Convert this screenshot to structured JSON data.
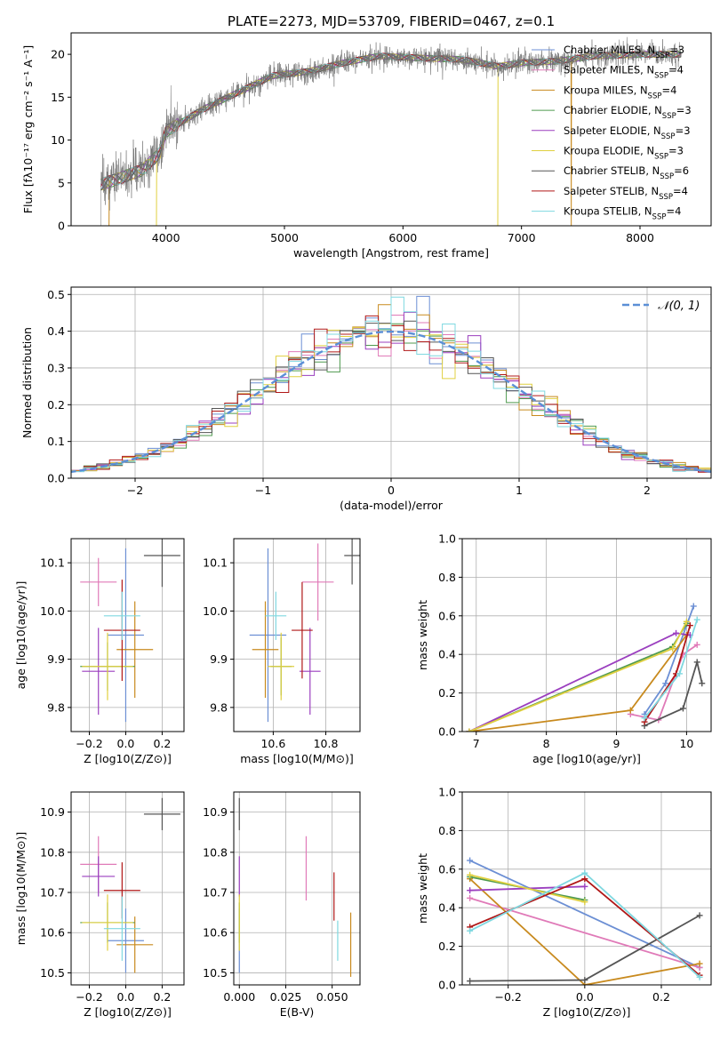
{
  "figure_title": "PLATE=2273, MJD=53709, FIBERID=0467, z=0.1",
  "series_colors": {
    "Chabrier MILES": "#6c8fd4",
    "Salpeter MILES": "#e07ab8",
    "Kroupa MILES": "#c88a1e",
    "Chabrier ELODIE": "#4f9a4f",
    "Salpeter ELODIE": "#9b3fbf",
    "Kroupa ELODIE": "#e0d040",
    "Chabrier STELIB": "#555555",
    "Salpeter STELIB": "#b01818",
    "Kroupa STELIB": "#7fd8e0"
  },
  "chart_data": [
    {
      "id": "spectrum",
      "type": "line",
      "xlabel": "wavelength [Angstrom, rest frame]",
      "ylabel": "Flux [fλ10⁻¹⁷ erg cm⁻² s⁻¹ A⁻¹]",
      "xlim": [
        3200,
        8600
      ],
      "ylim": [
        0,
        22.5
      ],
      "xticks": [
        4000,
        5000,
        6000,
        7000,
        8000
      ],
      "yticks": [
        0,
        5,
        10,
        15,
        20
      ],
      "legend_placement": "upper-right",
      "legend": [
        "Chabrier MILES, N_SSP=3",
        "Salpeter MILES, N_SSP=4",
        "Kroupa MILES, N_SSP=4",
        "Chabrier ELODIE, N_SSP=3",
        "Salpeter ELODIE, N_SSP=3",
        "Kroupa ELODIE, N_SSP=3",
        "Chabrier STELIB, N_SSP=6",
        "Salpeter STELIB, N_SSP=4",
        "Kroupa STELIB, N_SSP=4"
      ],
      "continuum_knots": [
        [
          3450,
          4.8
        ],
        [
          3600,
          5.5
        ],
        [
          3800,
          6.5
        ],
        [
          3950,
          8.5
        ],
        [
          4000,
          11.0
        ],
        [
          4300,
          13.5
        ],
        [
          4600,
          15.5
        ],
        [
          4900,
          17.5
        ],
        [
          5200,
          18.0
        ],
        [
          5500,
          19.0
        ],
        [
          5800,
          19.8
        ],
        [
          6100,
          19.6
        ],
        [
          6500,
          19.4
        ],
        [
          6800,
          18.6
        ],
        [
          7000,
          19.0
        ],
        [
          7300,
          19.2
        ],
        [
          7600,
          19.8
        ],
        [
          8000,
          20.0
        ],
        [
          8350,
          20.0
        ]
      ],
      "model_dropouts": [
        [
          3520,
          "Kroupa MILES"
        ],
        [
          3920,
          "Kroupa ELODIE"
        ],
        [
          6800,
          "Kroupa ELODIE"
        ],
        [
          7420,
          "Kroupa MILES"
        ]
      ]
    },
    {
      "id": "residuals",
      "type": "histogram",
      "xlabel": "(data-model)/error",
      "ylabel": "Normed distribution",
      "xlim": [
        -2.5,
        2.5
      ],
      "ylim": [
        0,
        0.52
      ],
      "xticks": [
        -2,
        -1,
        0,
        1,
        2
      ],
      "yticks": [
        0.0,
        0.1,
        0.2,
        0.3,
        0.4,
        0.5
      ],
      "grid": true,
      "legend": [
        "𝒩(0, 1)"
      ],
      "legend_placement": "upper-right",
      "bin_width": 0.1,
      "bin_edges_range": [
        -2.5,
        2.5
      ],
      "reference_curve": "normal(0,1)"
    },
    {
      "id": "age_vs_Z",
      "type": "errorbar",
      "xlabel": "Z [log10(Z/Z⊙)]",
      "ylabel": "age  [log10(age/yr)]",
      "xlim": [
        -0.3,
        0.32
      ],
      "ylim": [
        9.75,
        10.15
      ],
      "xticks": [
        -0.2,
        0.0,
        0.2
      ],
      "yticks": [
        9.8,
        9.9,
        10.0,
        10.1
      ],
      "points": [
        {
          "series": "Chabrier MILES",
          "x": 0.0,
          "y": 9.95,
          "xerr": 0.1,
          "yerr": 0.18
        },
        {
          "series": "Salpeter MILES",
          "x": -0.15,
          "y": 10.06,
          "xerr": 0.1,
          "yerr": 0.05
        },
        {
          "series": "Kroupa MILES",
          "x": 0.05,
          "y": 9.92,
          "xerr": 0.1,
          "yerr": 0.1
        },
        {
          "series": "Chabrier ELODIE",
          "x": -0.1,
          "y": 9.885,
          "xerr": 0.15,
          "yerr": 0.05
        },
        {
          "series": "Salpeter ELODIE",
          "x": -0.15,
          "y": 9.875,
          "xerr": 0.09,
          "yerr": 0.09
        },
        {
          "series": "Kroupa ELODIE",
          "x": -0.1,
          "y": 9.885,
          "xerr": 0.14,
          "yerr": 0.07
        },
        {
          "series": "Chabrier STELIB",
          "x": 0.2,
          "y": 10.115,
          "xerr": 0.1,
          "yerr": 0.065
        },
        {
          "series": "Salpeter STELIB",
          "x": -0.02,
          "y": 9.96,
          "xerr": 0.1,
          "yerr": 0.105
        },
        {
          "series": "Kroupa STELIB",
          "x": -0.02,
          "y": 9.99,
          "xerr": 0.1,
          "yerr": 0.05
        }
      ]
    },
    {
      "id": "age_vs_mass",
      "type": "errorbar",
      "xlabel": "mass [log10(M/M⊙)]",
      "xlim": [
        10.45,
        10.93
      ],
      "ylim": [
        9.75,
        10.15
      ],
      "xticks": [
        10.6,
        10.8
      ],
      "yticks": [
        9.8,
        9.9,
        10.0,
        10.1
      ],
      "points": [
        {
          "series": "Chabrier MILES",
          "x": 10.58,
          "y": 9.95,
          "xerr": 0.07,
          "yerr": 0.18
        },
        {
          "series": "Salpeter MILES",
          "x": 10.77,
          "y": 10.06,
          "xerr": 0.06,
          "yerr": 0.08
        },
        {
          "series": "Kroupa MILES",
          "x": 10.57,
          "y": 9.92,
          "xerr": 0.05,
          "yerr": 0.1
        },
        {
          "series": "Chabrier ELODIE",
          "x": 10.63,
          "y": 9.885,
          "xerr": 0.04,
          "yerr": 0.06
        },
        {
          "series": "Salpeter ELODIE",
          "x": 10.74,
          "y": 9.875,
          "xerr": 0.04,
          "yerr": 0.09
        },
        {
          "series": "Kroupa ELODIE",
          "x": 10.63,
          "y": 9.885,
          "xerr": 0.05,
          "yerr": 0.07
        },
        {
          "series": "Chabrier STELIB",
          "x": 10.9,
          "y": 10.115,
          "xerr": 0.03,
          "yerr": 0.06
        },
        {
          "series": "Salpeter STELIB",
          "x": 10.71,
          "y": 9.96,
          "xerr": 0.04,
          "yerr": 0.1
        },
        {
          "series": "Kroupa STELIB",
          "x": 10.61,
          "y": 9.99,
          "xerr": 0.04,
          "yerr": 0.05
        }
      ]
    },
    {
      "id": "massweight_vs_age",
      "type": "line",
      "xlabel": "age  [log10(age/yr)]",
      "ylabel": "mass weight",
      "xlim": [
        6.8,
        10.35
      ],
      "ylim": [
        0,
        1.0
      ],
      "xticks": [
        7,
        8,
        9,
        10
      ],
      "yticks": [
        0.0,
        0.2,
        0.4,
        0.6,
        0.8,
        1.0
      ],
      "series": [
        {
          "name": "Chabrier MILES",
          "points": [
            [
              9.4,
              0.09
            ],
            [
              9.7,
              0.25
            ],
            [
              10.1,
              0.65
            ]
          ]
        },
        {
          "name": "Salpeter MILES",
          "points": [
            [
              9.2,
              0.09
            ],
            [
              9.6,
              0.06
            ],
            [
              9.95,
              0.4
            ],
            [
              10.15,
              0.45
            ]
          ]
        },
        {
          "name": "Kroupa MILES",
          "points": [
            [
              6.9,
              0.0
            ],
            [
              9.2,
              0.11
            ],
            [
              10.0,
              0.5
            ]
          ]
        },
        {
          "name": "Chabrier ELODIE",
          "points": [
            [
              6.9,
              0.0
            ],
            [
              9.8,
              0.44
            ],
            [
              10.0,
              0.56
            ]
          ]
        },
        {
          "name": "Salpeter ELODIE",
          "points": [
            [
              6.9,
              0.0
            ],
            [
              9.85,
              0.51
            ],
            [
              10.05,
              0.5
            ]
          ]
        },
        {
          "name": "Kroupa ELODIE",
          "points": [
            [
              6.9,
              0.0
            ],
            [
              9.8,
              0.43
            ],
            [
              10.0,
              0.57
            ]
          ]
        },
        {
          "name": "Chabrier STELIB",
          "points": [
            [
              9.4,
              0.03
            ],
            [
              9.95,
              0.12
            ],
            [
              10.15,
              0.36
            ],
            [
              10.22,
              0.25
            ]
          ]
        },
        {
          "name": "Salpeter STELIB",
          "points": [
            [
              9.4,
              0.05
            ],
            [
              9.85,
              0.3
            ],
            [
              10.05,
              0.55
            ]
          ]
        },
        {
          "name": "Kroupa STELIB",
          "points": [
            [
              9.4,
              0.07
            ],
            [
              9.9,
              0.3
            ],
            [
              10.15,
              0.58
            ]
          ]
        }
      ]
    },
    {
      "id": "mass_vs_Z",
      "type": "errorbar",
      "xlabel": "Z [log10(Z/Z⊙)]",
      "ylabel": "mass [log10(M/M⊙)]",
      "xlim": [
        -0.3,
        0.32
      ],
      "ylim": [
        10.47,
        10.95
      ],
      "xticks": [
        -0.2,
        0.0,
        0.2
      ],
      "yticks": [
        10.5,
        10.6,
        10.7,
        10.8,
        10.9
      ],
      "points": [
        {
          "series": "Chabrier MILES",
          "x": 0.0,
          "y": 10.58,
          "xerr": 0.1,
          "yerr": 0.08
        },
        {
          "series": "Salpeter MILES",
          "x": -0.15,
          "y": 10.77,
          "xerr": 0.1,
          "yerr": 0.07
        },
        {
          "series": "Kroupa MILES",
          "x": 0.05,
          "y": 10.57,
          "xerr": 0.1,
          "yerr": 0.07
        },
        {
          "series": "Chabrier ELODIE",
          "x": -0.1,
          "y": 10.625,
          "xerr": 0.15,
          "yerr": 0.05
        },
        {
          "series": "Salpeter ELODIE",
          "x": -0.15,
          "y": 10.74,
          "xerr": 0.09,
          "yerr": 0.05
        },
        {
          "series": "Kroupa ELODIE",
          "x": -0.1,
          "y": 10.625,
          "xerr": 0.14,
          "yerr": 0.07
        },
        {
          "series": "Chabrier STELIB",
          "x": 0.2,
          "y": 10.895,
          "xerr": 0.1,
          "yerr": 0.04
        },
        {
          "series": "Salpeter STELIB",
          "x": -0.02,
          "y": 10.705,
          "xerr": 0.1,
          "yerr": 0.07
        },
        {
          "series": "Kroupa STELIB",
          "x": -0.02,
          "y": 10.61,
          "xerr": 0.1,
          "yerr": 0.08
        }
      ]
    },
    {
      "id": "mass_vs_ebv",
      "type": "errorbar",
      "xlabel": "E(B-V)",
      "xlim": [
        -0.003,
        0.065
      ],
      "ylim": [
        10.47,
        10.95
      ],
      "xticks": [
        0.0,
        0.025,
        0.05
      ],
      "yticks": [
        10.5,
        10.6,
        10.7,
        10.8,
        10.9
      ],
      "points": [
        {
          "series": "Chabrier MILES",
          "x": 0.0,
          "y": 10.58,
          "xerr": 0.0,
          "yerr": 0.08
        },
        {
          "series": "Salpeter MILES",
          "x": 0.036,
          "y": 10.76,
          "xerr": 0.0,
          "yerr": 0.08
        },
        {
          "series": "Kroupa MILES",
          "x": 0.06,
          "y": 10.57,
          "xerr": 0.0,
          "yerr": 0.08
        },
        {
          "series": "Chabrier ELODIE",
          "x": 0.0,
          "y": 10.625,
          "xerr": 0.0,
          "yerr": 0.05
        },
        {
          "series": "Salpeter ELODIE",
          "x": 0.0,
          "y": 10.74,
          "xerr": 0.0,
          "yerr": 0.05
        },
        {
          "series": "Kroupa ELODIE",
          "x": 0.0,
          "y": 10.625,
          "xerr": 0.0,
          "yerr": 0.07
        },
        {
          "series": "Chabrier STELIB",
          "x": 0.0,
          "y": 10.895,
          "xerr": 0.0,
          "yerr": 0.04
        },
        {
          "series": "Salpeter STELIB",
          "x": 0.051,
          "y": 10.69,
          "xerr": 0.0,
          "yerr": 0.06
        },
        {
          "series": "Kroupa STELIB",
          "x": 0.053,
          "y": 10.58,
          "xerr": 0.0,
          "yerr": 0.05
        }
      ]
    },
    {
      "id": "massweight_vs_Z",
      "type": "line",
      "xlabel": "Z [log10(Z/Z⊙)]",
      "ylabel": "mass weight",
      "xlim": [
        -0.32,
        0.33
      ],
      "ylim": [
        0,
        1.0
      ],
      "xticks": [
        -0.2,
        0.0,
        0.2
      ],
      "yticks": [
        0.0,
        0.2,
        0.4,
        0.6,
        0.8,
        1.0
      ],
      "series": [
        {
          "name": "Chabrier MILES",
          "points": [
            [
              -0.3,
              0.645
            ],
            [
              0.3,
              0.09
            ]
          ]
        },
        {
          "name": "Salpeter MILES",
          "points": [
            [
              -0.3,
              0.45
            ],
            [
              0.3,
              0.09
            ]
          ]
        },
        {
          "name": "Kroupa MILES",
          "points": [
            [
              -0.3,
              0.55
            ],
            [
              0.0,
              0.0
            ],
            [
              0.3,
              0.11
            ]
          ]
        },
        {
          "name": "Chabrier ELODIE",
          "points": [
            [
              -0.3,
              0.56
            ],
            [
              0.0,
              0.44
            ]
          ]
        },
        {
          "name": "Salpeter ELODIE",
          "points": [
            [
              -0.3,
              0.49
            ],
            [
              0.0,
              0.51
            ]
          ]
        },
        {
          "name": "Kroupa ELODIE",
          "points": [
            [
              -0.3,
              0.57
            ],
            [
              0.0,
              0.43
            ]
          ]
        },
        {
          "name": "Chabrier STELIB",
          "points": [
            [
              -0.3,
              0.02
            ],
            [
              0.0,
              0.025
            ],
            [
              0.3,
              0.36
            ]
          ]
        },
        {
          "name": "Salpeter STELIB",
          "points": [
            [
              -0.3,
              0.3
            ],
            [
              0.0,
              0.55
            ],
            [
              0.3,
              0.05
            ]
          ]
        },
        {
          "name": "Kroupa STELIB",
          "points": [
            [
              -0.3,
              0.28
            ],
            [
              0.0,
              0.58
            ],
            [
              0.3,
              0.04
            ]
          ]
        }
      ]
    }
  ]
}
